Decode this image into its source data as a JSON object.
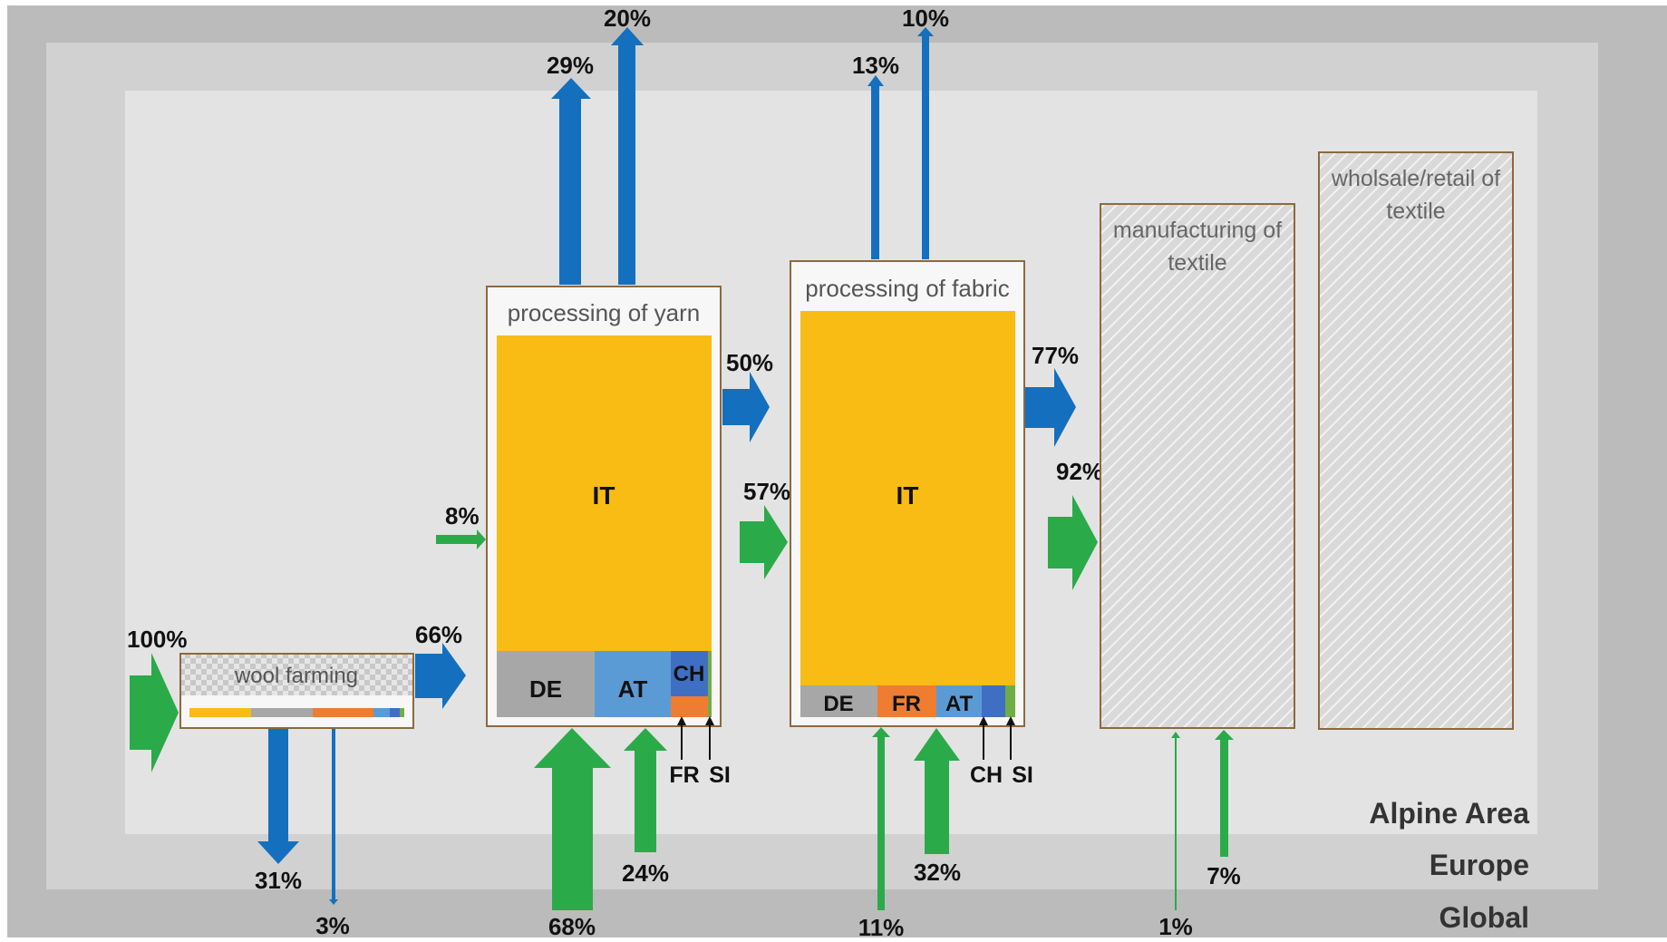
{
  "colors": {
    "outflow": "#1470BE",
    "inflow": "#2BAA4A",
    "IT": "#F9BC15",
    "DE": "#A7A7A7",
    "AT": "#5B9BD5",
    "CH": "#3F6FC2",
    "FR": "#EE7D31",
    "SI": "#70AD47",
    "global_bg": "#BBBBBB",
    "europe_bg": "#D1D1D1",
    "alpine_bg": "#E3E3E3"
  },
  "regions": {
    "alpine": "Alpine Area",
    "europe": "Europe",
    "global": "Global"
  },
  "stages": {
    "wool": "wool farming",
    "yarn": "processing of yarn",
    "fabric": "processing of fabric",
    "manufacturing": "manufacturing of textile",
    "retail": "wholsale/retail of textile"
  },
  "yarn_segments": {
    "IT": "IT",
    "DE": "DE",
    "AT": "AT",
    "CH": "CH",
    "FR": "FR",
    "SI": "SI"
  },
  "fabric_segments": {
    "IT": "IT",
    "DE": "DE",
    "FR": "FR",
    "AT": "AT",
    "CH": "CH",
    "SI": "SI"
  },
  "flows": {
    "wool_in": "100%",
    "wool_to_yarn": "66%",
    "wool_out_europe": "31%",
    "wool_out_global": "3%",
    "yarn_in_alpine": "8%",
    "yarn_out_europe": "29%",
    "yarn_out_global": "20%",
    "yarn_in_global": "68%",
    "yarn_in_europe": "24%",
    "yarn_to_fabric": "50%",
    "fabric_in_alpine": "57%",
    "fabric_out_europe": "13%",
    "fabric_out_global": "10%",
    "fabric_in_global": "11%",
    "fabric_in_europe": "32%",
    "fabric_to_manufacturing": "77%",
    "manufacturing_in_alpine": "92%",
    "manufacturing_in_global": "1%",
    "manufacturing_in_europe": "7%"
  }
}
